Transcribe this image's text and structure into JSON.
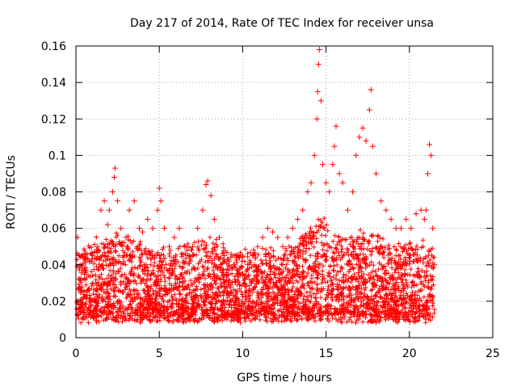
{
  "chart_data": {
    "type": "scatter",
    "title": "Day 217 of 2014, Rate Of TEC Index for receiver unsa",
    "xlabel": "GPS time / hours",
    "ylabel": "ROTI / TECUs",
    "xlim": [
      0,
      25
    ],
    "ylim": [
      0,
      0.16
    ],
    "xticks": [
      0,
      5,
      10,
      15,
      20,
      25
    ],
    "xtick_labels": [
      "0",
      "5",
      "10",
      "15",
      "20",
      "25"
    ],
    "yticks": [
      0,
      0.02,
      0.04,
      0.06,
      0.08,
      0.1,
      0.12,
      0.14,
      0.16
    ],
    "ytick_labels": [
      "0",
      "0.02",
      "0.04",
      "0.06",
      "0.08",
      "0.1",
      "0.12",
      "0.14",
      "0.16"
    ],
    "grid": true,
    "marker": "+",
    "color": "#ff0000",
    "series": [
      {
        "name": "ROTI",
        "x": [
          0.1,
          0.2,
          0.3,
          0.5,
          0.8,
          1.0,
          1.3,
          1.5,
          1.7,
          1.9,
          2.0,
          2.2,
          2.3,
          2.35,
          2.5,
          2.7,
          3.0,
          3.2,
          3.5,
          3.8,
          4.0,
          4.3,
          4.6,
          4.9,
          5.0,
          5.1,
          5.3,
          5.6,
          5.9,
          6.2,
          6.5,
          6.8,
          7.0,
          7.3,
          7.6,
          7.8,
          7.9,
          8.1,
          8.3,
          8.6,
          8.9,
          9.2,
          9.5,
          9.8,
          10.0,
          10.3,
          10.6,
          10.9,
          11.2,
          11.5,
          11.8,
          12.1,
          12.4,
          12.7,
          13.0,
          13.3,
          13.6,
          13.9,
          14.1,
          14.3,
          14.45,
          14.5,
          14.55,
          14.6,
          14.7,
          14.8,
          15.0,
          15.2,
          15.4,
          15.5,
          15.6,
          15.8,
          16.0,
          16.3,
          16.6,
          16.8,
          17.0,
          17.2,
          17.4,
          17.6,
          17.7,
          17.8,
          18.0,
          18.3,
          18.6,
          18.9,
          19.2,
          19.5,
          19.8,
          20.1,
          20.4,
          20.7,
          20.9,
          21.0,
          21.1,
          21.2,
          21.3,
          21.4,
          21.5
        ],
        "y": [
          0.055,
          0.045,
          0.04,
          0.038,
          0.042,
          0.045,
          0.05,
          0.07,
          0.075,
          0.062,
          0.07,
          0.08,
          0.088,
          0.093,
          0.075,
          0.06,
          0.055,
          0.07,
          0.075,
          0.06,
          0.058,
          0.065,
          0.06,
          0.07,
          0.082,
          0.075,
          0.06,
          0.05,
          0.055,
          0.06,
          0.05,
          0.045,
          0.05,
          0.06,
          0.07,
          0.084,
          0.086,
          0.078,
          0.065,
          0.055,
          0.045,
          0.042,
          0.04,
          0.038,
          0.035,
          0.04,
          0.045,
          0.05,
          0.055,
          0.06,
          0.058,
          0.055,
          0.05,
          0.055,
          0.06,
          0.065,
          0.07,
          0.08,
          0.085,
          0.1,
          0.12,
          0.135,
          0.15,
          0.158,
          0.13,
          0.095,
          0.085,
          0.08,
          0.095,
          0.105,
          0.116,
          0.09,
          0.085,
          0.07,
          0.08,
          0.1,
          0.11,
          0.115,
          0.108,
          0.125,
          0.136,
          0.105,
          0.09,
          0.075,
          0.07,
          0.065,
          0.06,
          0.06,
          0.065,
          0.06,
          0.068,
          0.07,
          0.065,
          0.07,
          0.09,
          0.106,
          0.1,
          0.06,
          0.04
        ]
      }
    ]
  }
}
